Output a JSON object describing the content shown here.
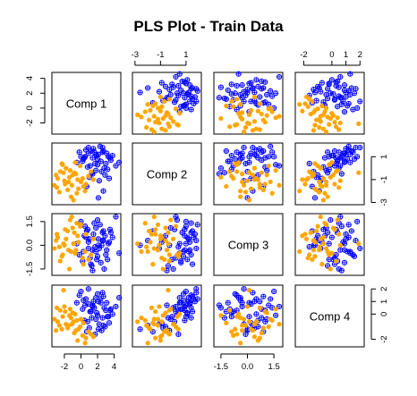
{
  "chart_data": {
    "type": "scatter",
    "title": "PLS Plot - Train Data",
    "variables": [
      "Comp 1",
      "Comp 2",
      "Comp 3",
      "Comp 4"
    ],
    "ranges": [
      [
        -3.5,
        4.8
      ],
      [
        -3.2,
        2.2
      ],
      [
        -1.9,
        2.0
      ],
      [
        -2.6,
        2.3
      ]
    ],
    "ticks": [
      {
        "values": [
          -2,
          0,
          2,
          4
        ],
        "labels": [
          "-2",
          "0",
          "2",
          "4"
        ]
      },
      {
        "values": [
          -3,
          -1,
          1
        ],
        "labels": [
          "-3",
          "-1",
          "1"
        ]
      },
      {
        "values": [
          -1.5,
          0.0,
          1.5
        ],
        "labels": [
          "-1.5",
          "0.0",
          "1.5"
        ]
      },
      {
        "values": [
          -2,
          0,
          1,
          2
        ],
        "labels": [
          "-2",
          "0",
          "1",
          "2"
        ]
      }
    ],
    "groups": [
      {
        "color": "#0000ff",
        "marker": "circle-plus"
      },
      {
        "color": "#ffa500",
        "marker": "filled-circle"
      }
    ],
    "points": [
      [
        [
          2.1,
          1.2,
          0.4,
          1.0
        ],
        [
          1.4,
          0.9,
          -0.3,
          0.6
        ],
        [
          2.7,
          1.5,
          0.9,
          1.4
        ],
        [
          0.9,
          1.3,
          0.2,
          0.8
        ],
        [
          3.0,
          0.4,
          -0.6,
          0.3
        ],
        [
          1.8,
          -0.2,
          1.1,
          -0.4
        ],
        [
          2.4,
          0.6,
          -1.1,
          0.9
        ],
        [
          0.6,
          1.6,
          0.5,
          1.2
        ],
        [
          3.3,
          1.0,
          0.1,
          -0.2
        ],
        [
          1.1,
          0.2,
          -0.8,
          0.2
        ],
        [
          2.9,
          -0.6,
          0.6,
          -1.0
        ],
        [
          1.6,
          1.4,
          1.4,
          0.5
        ],
        [
          0.3,
          0.8,
          -0.4,
          1.1
        ],
        [
          2.2,
          -1.1,
          -0.2,
          -0.8
        ],
        [
          3.6,
          0.7,
          0.8,
          0.4
        ],
        [
          1.3,
          -0.4,
          -1.3,
          -0.3
        ],
        [
          2.6,
          1.8,
          0.3,
          1.7
        ],
        [
          0.8,
          0.1,
          1.0,
          -0.6
        ],
        [
          4.6,
          0.5,
          -0.5,
          1.3
        ],
        [
          1.9,
          1.1,
          -0.9,
          0.1
        ],
        [
          2.5,
          -0.3,
          0.0,
          -1.3
        ],
        [
          0.5,
          1.0,
          1.2,
          0.7
        ],
        [
          3.1,
          1.3,
          -0.3,
          0.9
        ],
        [
          1.0,
          -0.8,
          0.4,
          -1.1
        ],
        [
          2.0,
          0.3,
          1.6,
          -0.1
        ],
        [
          -0.2,
          1.4,
          -0.6,
          1.5
        ],
        [
          2.8,
          0.0,
          -1.5,
          0.5
        ],
        [
          1.5,
          1.7,
          0.7,
          1.0
        ],
        [
          3.4,
          -0.9,
          0.2,
          -0.7
        ],
        [
          0.2,
          0.6,
          -1.0,
          0.4
        ],
        [
          2.3,
          1.9,
          1.3,
          1.2
        ],
        [
          1.7,
          0.4,
          -0.1,
          -1.6
        ],
        [
          3.8,
          1.1,
          0.5,
          0.0
        ],
        [
          0.7,
          -1.6,
          0.9,
          -1.4
        ],
        [
          2.0,
          0.8,
          -0.7,
          1.6
        ],
        [
          4.2,
          0.2,
          1.8,
          0.6
        ],
        [
          1.2,
          1.5,
          -1.2,
          0.2
        ],
        [
          2.7,
          -2.0,
          0.3,
          -0.9
        ],
        [
          0.4,
          0.9,
          0.6,
          -0.5
        ],
        [
          1.8,
          1.2,
          -0.4,
          1.3
        ],
        [
          -0.5,
          0.5,
          0.1,
          0.9
        ],
        [
          3.2,
          -0.1,
          -0.9,
          -0.2
        ],
        [
          2.1,
          -2.6,
          0.0,
          -1.2
        ],
        [
          0.0,
          1.0,
          1.5,
          1.8
        ],
        [
          1.4,
          -0.5,
          -1.6,
          0.7
        ],
        [
          2.6,
          1.4,
          0.8,
          -0.3
        ],
        [
          0.9,
          1.8,
          -0.2,
          2.0
        ],
        [
          3.5,
          0.9,
          1.0,
          0.3
        ]
      ],
      [
        [
          -2.8,
          -0.9,
          0.5,
          -0.6
        ],
        [
          -1.5,
          -1.2,
          -0.3,
          -0.9
        ],
        [
          -0.8,
          -0.4,
          0.8,
          -1.5
        ],
        [
          -2.2,
          0.3,
          -0.6,
          -0.2
        ],
        [
          -0.3,
          -1.8,
          0.2,
          -1.2
        ],
        [
          -1.0,
          -0.6,
          1.1,
          0.1
        ],
        [
          -3.2,
          -1.5,
          -0.2,
          -0.4
        ],
        [
          0.2,
          -0.9,
          -0.8,
          -1.7
        ],
        [
          -1.8,
          0.0,
          0.4,
          -0.8
        ],
        [
          -0.5,
          -2.2,
          1.4,
          -0.5
        ],
        [
          -2.5,
          -0.3,
          -1.0,
          0.3
        ],
        [
          0.6,
          -1.4,
          0.7,
          -1.9
        ],
        [
          -1.2,
          -2.5,
          -0.4,
          -0.3
        ],
        [
          -0.1,
          0.2,
          1.2,
          -1.0
        ],
        [
          -2.0,
          -1.1,
          0.0,
          0.6
        ],
        [
          0.9,
          -0.7,
          -0.9,
          -1.4
        ],
        [
          -1.6,
          -1.9,
          0.9,
          -1.1
        ],
        [
          -0.7,
          0.5,
          -0.5,
          0.0
        ],
        [
          -3.0,
          -0.6,
          0.3,
          -1.3
        ],
        [
          0.3,
          -1.6,
          -1.2,
          -0.7
        ],
        [
          -1.3,
          -0.2,
          1.6,
          0.4
        ],
        [
          -2.6,
          -2.1,
          -0.1,
          -0.9
        ],
        [
          -0.4,
          -1.0,
          0.6,
          -2.1
        ],
        [
          1.2,
          -0.3,
          -0.6,
          -1.6
        ],
        [
          -1.9,
          -1.4,
          1.0,
          0.2
        ],
        [
          -0.9,
          -2.8,
          0.1,
          -0.6
        ],
        [
          -2.3,
          0.4,
          -0.7,
          -1.2
        ],
        [
          0.0,
          -1.2,
          1.3,
          -0.4
        ],
        [
          -1.4,
          -0.8,
          -1.5,
          -0.1
        ],
        [
          1.5,
          -1.0,
          0.4,
          -1.8
        ],
        [
          -2.9,
          -1.7,
          0.7,
          0.5
        ],
        [
          -0.6,
          -0.5,
          -0.3,
          -1.3
        ],
        [
          -1.1,
          -1.5,
          1.8,
          -0.8
        ],
        [
          0.5,
          -2.0,
          -0.4,
          -2.3
        ],
        [
          -2.1,
          -0.4,
          0.1,
          1.9
        ]
      ]
    ]
  }
}
